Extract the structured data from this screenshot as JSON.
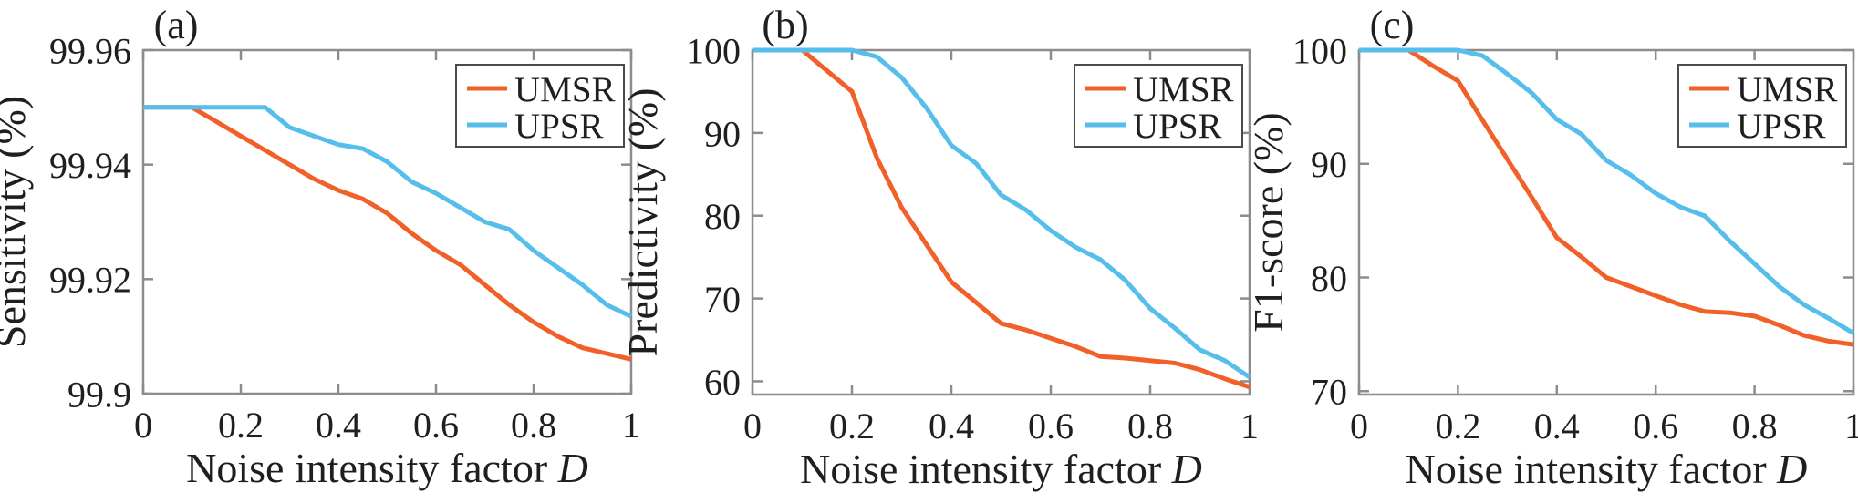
{
  "figure": {
    "background": "#ffffff",
    "axis_color": "#8c8c8c",
    "text_color": "#1f1f1f",
    "legend_border_color": "#4a4a4a",
    "umsr_color": "#F2602A",
    "upsr_color": "#56BEEA"
  },
  "chart_data": [
    {
      "type": "line",
      "title": "(a)",
      "xlabel": "Noise intensity factor",
      "xlabel_var": "D",
      "ylabel": "Sensitivity (%)",
      "xlim": [
        0,
        1
      ],
      "ylim": [
        99.9,
        99.96
      ],
      "xtick_values": [
        0,
        0.2,
        0.4,
        0.6,
        0.8,
        1
      ],
      "xtick_labels": [
        "0",
        "0.2",
        "0.4",
        "0.6",
        "0.8",
        "1"
      ],
      "ytick_values": [
        99.9,
        99.92,
        99.94,
        99.96
      ],
      "ytick_labels": [
        "99.9",
        "99.92",
        "99.94",
        "99.96"
      ],
      "grid": false,
      "legend_position": "top-right",
      "legend": [
        "UMSR",
        "UPSR"
      ],
      "x": [
        0,
        0.05,
        0.1,
        0.15,
        0.2,
        0.25,
        0.3,
        0.35,
        0.4,
        0.45,
        0.5,
        0.55,
        0.6,
        0.65,
        0.7,
        0.75,
        0.8,
        0.85,
        0.9,
        0.95,
        1
      ],
      "series": [
        {
          "name": "UMSR",
          "color_key": "umsr_color",
          "values": [
            99.95,
            99.95,
            99.95,
            99.9475,
            99.945,
            99.9425,
            99.94,
            99.9375,
            99.9355,
            99.934,
            99.9315,
            99.928,
            99.925,
            99.9225,
            99.919,
            99.9155,
            99.9125,
            99.91,
            99.908,
            99.907,
            99.906
          ]
        },
        {
          "name": "UPSR",
          "color_key": "upsr_color",
          "values": [
            99.95,
            99.95,
            99.95,
            99.95,
            99.95,
            99.95,
            99.9465,
            99.945,
            99.9435,
            99.9428,
            99.9405,
            99.937,
            99.935,
            99.9325,
            99.93,
            99.9287,
            99.925,
            99.922,
            99.919,
            99.9155,
            99.9135
          ]
        }
      ]
    },
    {
      "type": "line",
      "title": "(b)",
      "xlabel": "Noise intensity factor",
      "xlabel_var": "D",
      "ylabel": "Predictivity (%)",
      "xlim": [
        0,
        1
      ],
      "ylim": [
        58.4,
        100
      ],
      "xtick_values": [
        0,
        0.2,
        0.4,
        0.6,
        0.8,
        1
      ],
      "xtick_labels": [
        "0",
        "0.2",
        "0.4",
        "0.6",
        "0.8",
        "1"
      ],
      "ytick_values": [
        60,
        70,
        80,
        90,
        100
      ],
      "ytick_labels": [
        "60",
        "70",
        "80",
        "90",
        "100"
      ],
      "grid": false,
      "legend_position": "top-right",
      "legend": [
        "UMSR",
        "UPSR"
      ],
      "x": [
        0,
        0.05,
        0.1,
        0.15,
        0.2,
        0.25,
        0.3,
        0.35,
        0.4,
        0.45,
        0.5,
        0.55,
        0.6,
        0.65,
        0.7,
        0.75,
        0.8,
        0.85,
        0.9,
        0.95,
        1
      ],
      "series": [
        {
          "name": "UMSR",
          "color_key": "umsr_color",
          "values": [
            100,
            100,
            100,
            97.5,
            95,
            87,
            81,
            76.5,
            72,
            69.5,
            67,
            66.2,
            65.2,
            64.2,
            63,
            62.8,
            62.5,
            62.2,
            61.4,
            60.3,
            59.3
          ]
        },
        {
          "name": "UPSR",
          "color_key": "upsr_color",
          "values": [
            100,
            100,
            100,
            100,
            100,
            99.2,
            96.7,
            93,
            88.5,
            86.3,
            82.5,
            80.7,
            78.2,
            76.2,
            74.7,
            72.2,
            68.8,
            66.4,
            63.8,
            62.5,
            60.5
          ]
        }
      ]
    },
    {
      "type": "line",
      "title": "(c)",
      "xlabel": "Noise intensity factor",
      "xlabel_var": "D",
      "ylabel": "F1-score (%)",
      "xlim": [
        0,
        1
      ],
      "ylim": [
        69.7,
        100
      ],
      "xtick_values": [
        0,
        0.2,
        0.4,
        0.6,
        0.8,
        1
      ],
      "xtick_labels": [
        "0",
        "0.2",
        "0.4",
        "0.6",
        "0.8",
        "1"
      ],
      "ytick_values": [
        70,
        80,
        90,
        100
      ],
      "ytick_labels": [
        "70",
        "80",
        "90",
        "100"
      ],
      "grid": false,
      "legend_position": "top-right",
      "legend": [
        "UMSR",
        "UPSR"
      ],
      "x": [
        0,
        0.05,
        0.1,
        0.15,
        0.2,
        0.25,
        0.3,
        0.35,
        0.4,
        0.45,
        0.5,
        0.55,
        0.6,
        0.65,
        0.7,
        0.75,
        0.8,
        0.85,
        0.9,
        0.95,
        1
      ],
      "series": [
        {
          "name": "UMSR",
          "color_key": "umsr_color",
          "values": [
            100,
            100,
            100,
            98.6,
            97.3,
            93.8,
            90.4,
            87,
            83.5,
            81.8,
            80,
            79.2,
            78.4,
            77.6,
            77,
            76.9,
            76.6,
            75.8,
            74.9,
            74.4,
            74.1
          ]
        },
        {
          "name": "UPSR",
          "color_key": "upsr_color",
          "values": [
            100,
            100,
            100,
            100,
            100,
            99.5,
            97.9,
            96.2,
            93.9,
            92.6,
            90.3,
            89,
            87.4,
            86.2,
            85.4,
            83.2,
            81.2,
            79.2,
            77.6,
            76.4,
            75.1
          ]
        }
      ]
    }
  ]
}
